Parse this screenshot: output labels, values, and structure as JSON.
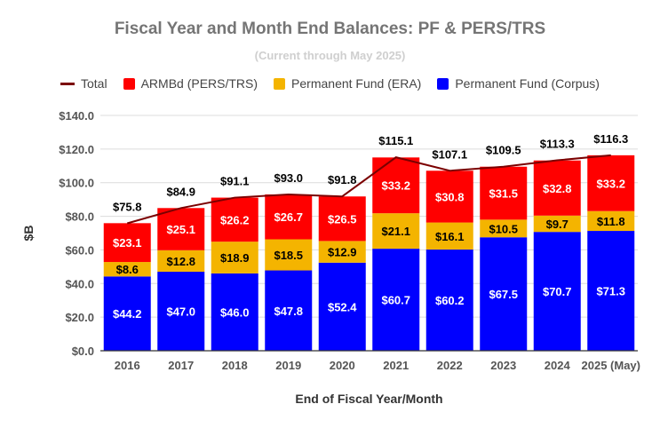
{
  "chart_data": {
    "type": "bar",
    "stacked": true,
    "title": "Fiscal Year and Month End Balances: PF & PERS/TRS",
    "subtitle": "(Current through May 2025)",
    "xlabel": "End of Fiscal Year/Month",
    "ylabel": "$B",
    "ylim": [
      0,
      140
    ],
    "yticks": [
      0,
      20,
      40,
      60,
      80,
      100,
      120,
      140
    ],
    "ytick_labels": [
      "$0.0",
      "$20.0",
      "$40.0",
      "$60.0",
      "$80.0",
      "$100.0",
      "$120.0",
      "$140.0"
    ],
    "grid": true,
    "legend_position": "top",
    "categories": [
      "2016",
      "2017",
      "2018",
      "2019",
      "2020",
      "2021",
      "2022",
      "2023",
      "2024",
      "2025 (May)"
    ],
    "series": [
      {
        "name": "Permanent Fund (Corpus)",
        "color": "#0000ff",
        "label_color": "#ffffff",
        "values": [
          44.2,
          47.0,
          46.0,
          47.8,
          52.4,
          60.7,
          60.2,
          67.5,
          70.7,
          71.3
        ],
        "labels": [
          "$44.2",
          "$47.0",
          "$46.0",
          "$47.8",
          "$52.4",
          "$60.7",
          "$60.2",
          "$67.5",
          "$70.7",
          "$71.3"
        ]
      },
      {
        "name": "Permanent Fund (ERA)",
        "color": "#f4b400",
        "label_color": "#000000",
        "values": [
          8.6,
          12.8,
          18.9,
          18.5,
          12.9,
          21.1,
          16.1,
          10.5,
          9.7,
          11.8
        ],
        "labels": [
          "$8.6",
          "$12.8",
          "$18.9",
          "$18.5",
          "$12.9",
          "$21.1",
          "$16.1",
          "$10.5",
          "$9.7",
          "$11.8"
        ]
      },
      {
        "name": "ARMBd (PERS/TRS)",
        "color": "#ff0000",
        "label_color": "#ffffff",
        "values": [
          23.1,
          25.1,
          26.2,
          26.7,
          26.5,
          33.2,
          30.8,
          31.5,
          32.8,
          33.2
        ],
        "labels": [
          "$23.1",
          "$25.1",
          "$26.2",
          "$26.7",
          "$26.5",
          "$33.2",
          "$30.8",
          "$31.5",
          "$32.8",
          "$33.2"
        ]
      }
    ],
    "total": {
      "name": "Total",
      "type": "line",
      "color": "#7b0000",
      "values": [
        75.8,
        84.9,
        91.1,
        93.0,
        91.8,
        115.1,
        107.1,
        109.5,
        113.3,
        116.3
      ],
      "labels": [
        "$75.8",
        "$84.9",
        "$91.1",
        "$93.0",
        "$91.8",
        "$115.1",
        "$107.1",
        "$109.5",
        "$113.3",
        "$116.3"
      ]
    }
  },
  "legend": [
    {
      "label": "Total",
      "color": "#7b0000",
      "kind": "line"
    },
    {
      "label": "ARMBd (PERS/TRS)",
      "color": "#ff0000",
      "kind": "box"
    },
    {
      "label": "Permanent Fund (ERA)",
      "color": "#f4b400",
      "kind": "box"
    },
    {
      "label": "Permanent Fund (Corpus)",
      "color": "#0000ff",
      "kind": "box"
    }
  ]
}
